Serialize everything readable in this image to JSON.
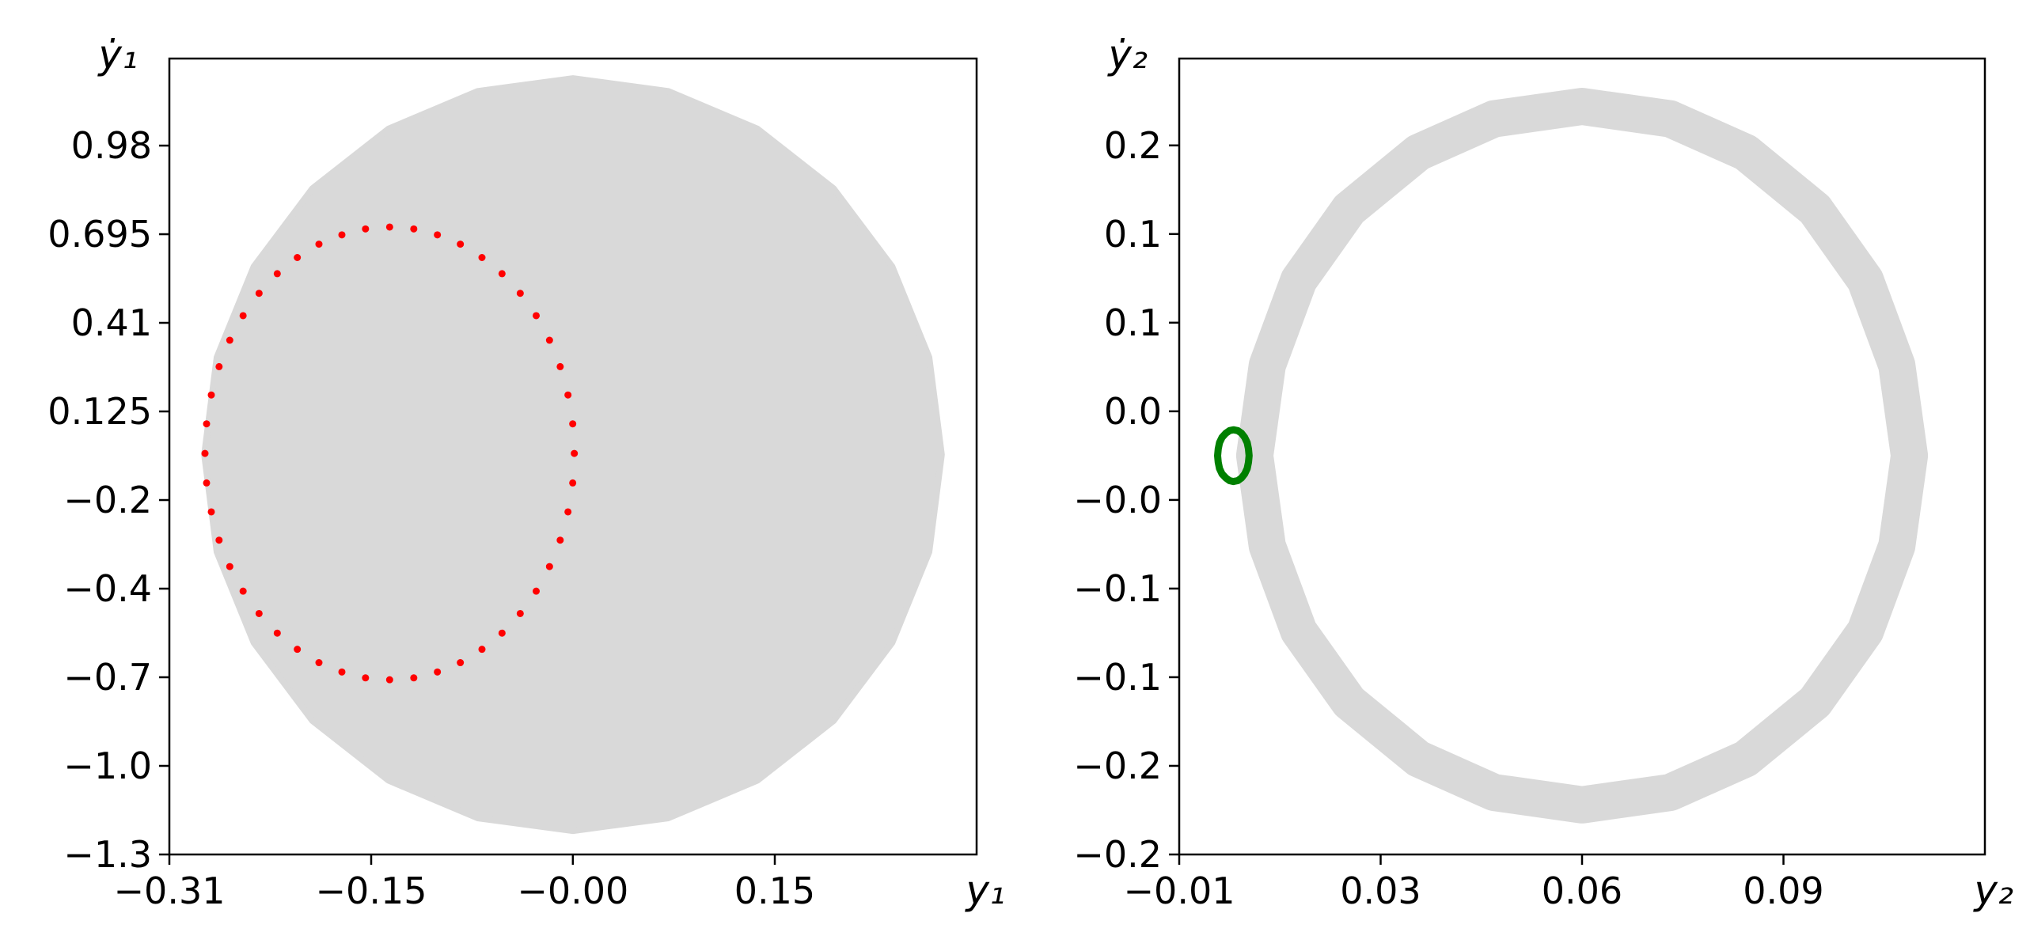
{
  "chart_data": [
    {
      "type": "scatter",
      "x_label": "y₁",
      "y_label": "ẏ₁",
      "xlim": [
        -0.306,
        0.306
      ],
      "xticks": [
        {
          "value": -0.306,
          "label": "−0.31"
        },
        {
          "value": -0.153,
          "label": "−0.15"
        },
        {
          "value": -0.0001,
          "label": "−0.00"
        },
        {
          "value": 0.153,
          "label": "0.15"
        }
      ],
      "ylim": [
        -1.3,
        1.26
      ],
      "yticks": [
        {
          "value": -1.3,
          "label": "−1.3"
        },
        {
          "value": -1.015,
          "label": "−1.0"
        },
        {
          "value": -0.73,
          "label": "−0.7"
        },
        {
          "value": -0.445,
          "label": "−0.4"
        },
        {
          "value": -0.16,
          "label": "−0.2"
        },
        0.125,
        0.41,
        0.695,
        0.98
      ],
      "series": [
        {
          "style": "area",
          "color": "#d9d9d9",
          "x": [
            0.2795,
            0.27,
            0.242,
            0.1976,
            0.1398,
            0.0723,
            0,
            -0.0723,
            -0.1398,
            -0.1976,
            -0.242,
            -0.27,
            -0.2795,
            -0.27,
            -0.242,
            -0.1976,
            -0.1398,
            -0.0723,
            0,
            0.0723,
            0.1398,
            0.1976,
            0.242,
            0.27
          ],
          "values": [
            -0.014,
            0.299,
            0.591,
            0.842,
            1.034,
            1.155,
            1.196,
            1.155,
            1.034,
            0.842,
            0.591,
            0.299,
            -0.014,
            -0.327,
            -0.619,
            -0.87,
            -1.062,
            -1.183,
            -1.224,
            -1.183,
            -1.062,
            -0.87,
            -0.619,
            -0.327
          ]
        },
        {
          "style": "dots",
          "color": "#ff0000",
          "x": [
            0.001,
            -0.0002,
            -0.0038,
            -0.0097,
            -0.0178,
            -0.0279,
            -0.04,
            -0.0538,
            -0.069,
            -0.0854,
            -0.1028,
            -0.1207,
            -0.139,
            -0.1573,
            -0.1752,
            -0.1926,
            -0.209,
            -0.2242,
            -0.238,
            -0.2501,
            -0.2602,
            -0.2683,
            -0.2742,
            -0.2778,
            -0.279,
            -0.2778,
            -0.2742,
            -0.2683,
            -0.2602,
            -0.2501,
            -0.238,
            -0.2242,
            -0.209,
            -0.1926,
            -0.1752,
            -0.1573,
            -0.139,
            -0.1207,
            -0.1028,
            -0.0854,
            -0.069,
            -0.0538,
            -0.04,
            -0.0279,
            -0.0178,
            -0.0097,
            -0.0038,
            -0.0002
          ],
          "values": [
            -0.01,
            0.085,
            0.178,
            0.269,
            0.354,
            0.433,
            0.505,
            0.568,
            0.62,
            0.663,
            0.693,
            0.712,
            0.718,
            0.712,
            0.693,
            0.663,
            0.62,
            0.568,
            0.505,
            0.433,
            0.354,
            0.269,
            0.178,
            0.085,
            -0.01,
            -0.105,
            -0.198,
            -0.289,
            -0.374,
            -0.453,
            -0.525,
            -0.588,
            -0.64,
            -0.683,
            -0.713,
            -0.732,
            -0.738,
            -0.732,
            -0.713,
            -0.683,
            -0.64,
            -0.588,
            -0.525,
            -0.453,
            -0.374,
            -0.289,
            -0.198,
            -0.105
          ]
        }
      ]
    },
    {
      "type": "scatter",
      "x_label": "y₂",
      "y_label": "ẏ₂",
      "xlim": [
        -0.006,
        0.122
      ],
      "xticks": [
        {
          "value": -0.006,
          "label": "−0.01"
        },
        {
          "value": 0.026,
          "label": "0.03"
        },
        {
          "value": 0.058,
          "label": "0.06"
        },
        0.09
      ],
      "ylim": [
        -0.225,
        0.224
      ],
      "yticks": [
        {
          "value": -0.225,
          "label": "−0.2"
        },
        {
          "value": -0.175,
          "label": "−0.2"
        },
        {
          "value": -0.125,
          "label": "−0.1"
        },
        {
          "value": -0.075,
          "label": "−0.1"
        },
        {
          "value": -0.025,
          "label": "−0.0"
        },
        {
          "value": 0.025,
          "label": "0.0"
        },
        {
          "value": 0.075,
          "label": "0.1"
        },
        {
          "value": 0.125,
          "label": "0.1"
        },
        {
          "value": 0.175,
          "label": "0.2"
        }
      ],
      "series": [
        {
          "style": "band",
          "color": "#d9d9d9",
          "x": [
            0.11,
            0.108,
            0.103,
            0.095,
            0.084,
            0.072,
            0.058,
            0.044,
            0.032,
            0.021,
            0.013,
            0.008,
            0.006,
            0.008,
            0.013,
            0.021,
            0.032,
            0.044,
            0.058,
            0.072,
            0.084,
            0.095,
            0.103,
            0.108
          ],
          "values": [
            0,
            0.051,
            0.099,
            0.139,
            0.171,
            0.19,
            0.197,
            0.19,
            0.171,
            0.139,
            0.099,
            0.051,
            0,
            -0.051,
            -0.099,
            -0.139,
            -0.171,
            -0.19,
            -0.197,
            -0.19,
            -0.171,
            -0.139,
            -0.099,
            -0.051
          ]
        },
        {
          "style": "line",
          "color": "#008000",
          "x": [
            0.0051,
            0.005,
            0.0048,
            0.0044,
            0.0039,
            0.0033,
            0.0026,
            0.002,
            0.0014,
            0.0008,
            0.0004,
            0.0002,
            0.0001,
            0.0002,
            0.0004,
            0.0008,
            0.0014,
            0.002,
            0.0026,
            0.0033,
            0.0039,
            0.0044,
            0.0048,
            0.005
          ],
          "values": [
            0,
            0.0038,
            0.0073,
            0.0103,
            0.0126,
            0.0141,
            0.0146,
            0.0141,
            0.0126,
            0.0103,
            0.0073,
            0.0038,
            0,
            -0.0038,
            -0.0073,
            -0.0103,
            -0.0126,
            -0.0141,
            -0.0146,
            -0.0141,
            -0.0126,
            -0.0103,
            -0.0073,
            -0.0038
          ]
        }
      ]
    }
  ]
}
